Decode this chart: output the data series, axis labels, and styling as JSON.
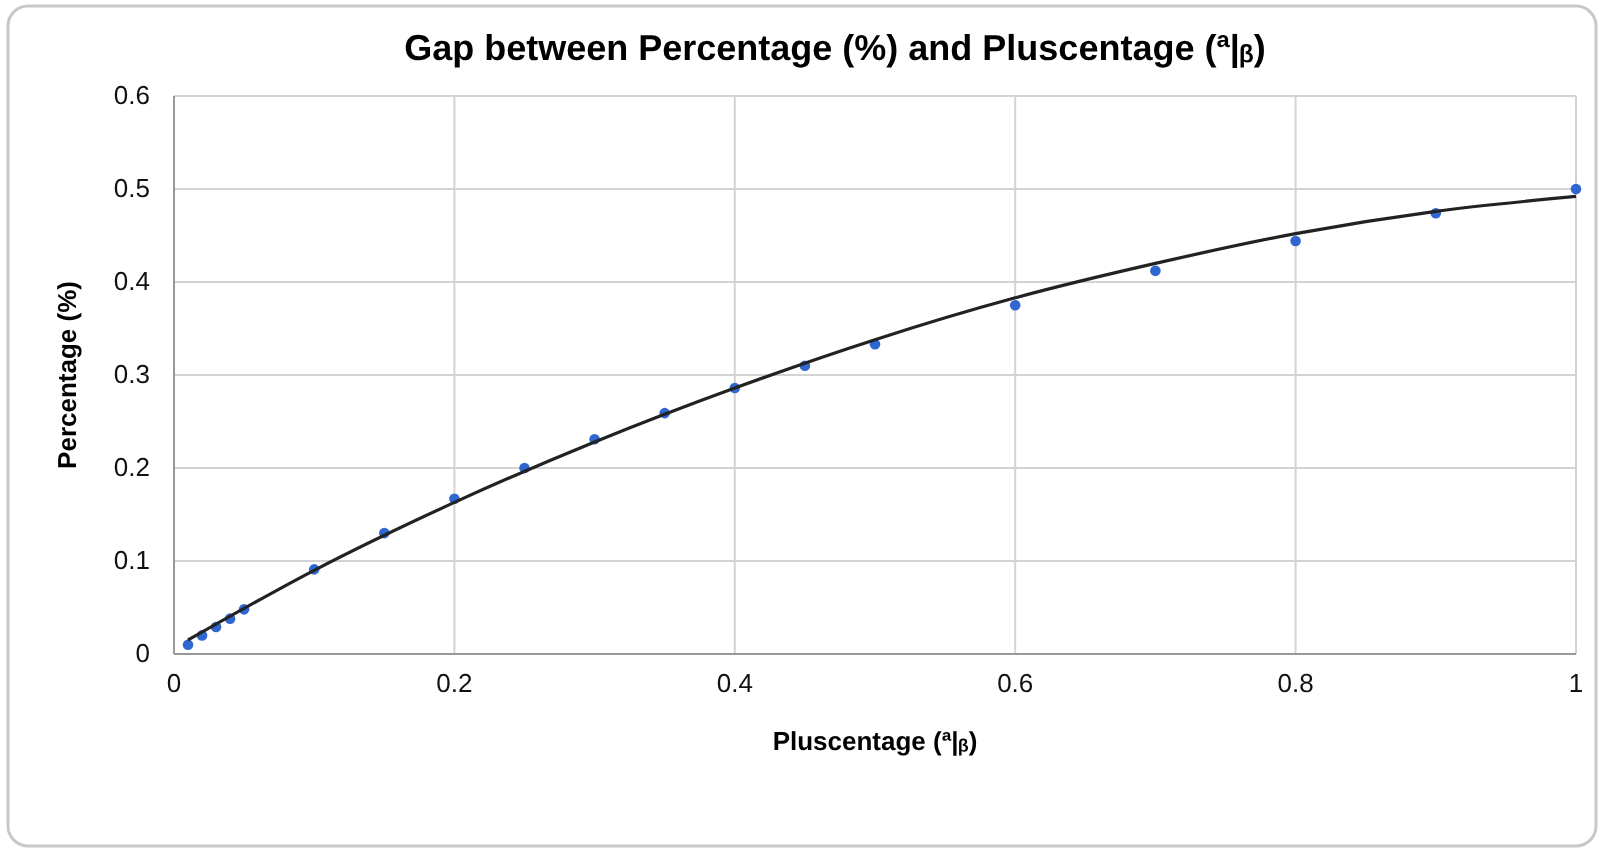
{
  "chart_data": {
    "type": "scatter",
    "title": "Gap between Percentage (%) and Pluscentage (ª|ᵦ)",
    "xlabel": "Pluscentage (ª|ᵦ)",
    "ylabel": "Percentage (%)",
    "xlim": [
      0,
      1
    ],
    "xticks": [
      0,
      0.2,
      0.4,
      0.6,
      0.8,
      1
    ],
    "ylim": [
      0,
      0.6
    ],
    "yticks": [
      0,
      0.1,
      0.2,
      0.3,
      0.4,
      0.5,
      0.6
    ],
    "grid": true,
    "series": [
      {
        "marker": "circle",
        "color": "#2f66d0",
        "x": [
          0.01,
          0.02,
          0.03,
          0.04,
          0.05,
          0.1,
          0.15,
          0.2,
          0.25,
          0.3,
          0.35,
          0.4,
          0.45,
          0.5,
          0.6,
          0.7,
          0.8,
          0.9,
          1
        ],
        "values": [
          0.01,
          0.02,
          0.029,
          0.038,
          0.048,
          0.091,
          0.13,
          0.167,
          0.2,
          0.231,
          0.259,
          0.286,
          0.31,
          0.333,
          0.375,
          0.412,
          0.444,
          0.474,
          0.5
        ]
      },
      {
        "type": "line",
        "color": "#222222",
        "line_style": "solid",
        "x": [
          0.01,
          0.1,
          0.2,
          0.3,
          0.4,
          0.5,
          0.6,
          0.7,
          0.8,
          0.9,
          1
        ],
        "values": [
          0.015,
          0.09,
          0.163,
          0.228,
          0.286,
          0.338,
          0.383,
          0.42,
          0.452,
          0.476,
          0.492
        ]
      }
    ]
  }
}
